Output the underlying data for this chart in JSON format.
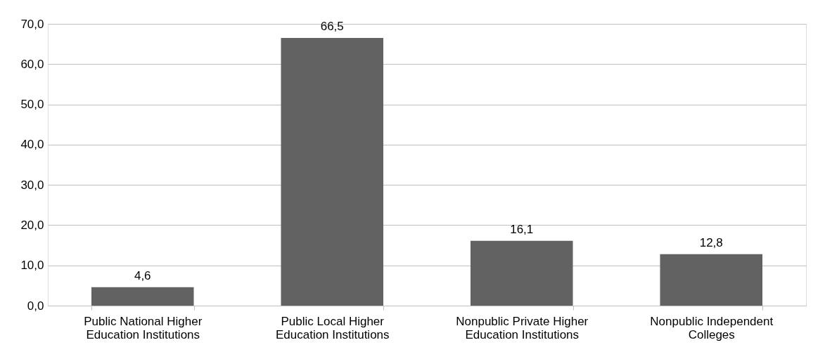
{
  "chart_data": {
    "type": "bar",
    "categories": [
      "Public National Higher Education Institutions",
      "Public Local Higher Education Institutions",
      "Nonpublic Private Higher Education Institutions",
      "Nonpublic Independent Colleges"
    ],
    "values": [
      4.6,
      66.5,
      16.1,
      12.8
    ],
    "value_labels": [
      "4,6",
      "66,5",
      "16,1",
      "12,8"
    ],
    "color": "#626262",
    "ylim": [
      0,
      70
    ],
    "yticks": [
      {
        "value": 0,
        "label": "0,0"
      },
      {
        "value": 10,
        "label": "10,0"
      },
      {
        "value": 20,
        "label": "20,0"
      },
      {
        "value": 30,
        "label": "30,0"
      },
      {
        "value": 40,
        "label": "40,0"
      },
      {
        "value": 50,
        "label": "50,0"
      },
      {
        "value": 60,
        "label": "60,0"
      },
      {
        "value": 70,
        "label": "70,0"
      }
    ],
    "grid": "y"
  }
}
